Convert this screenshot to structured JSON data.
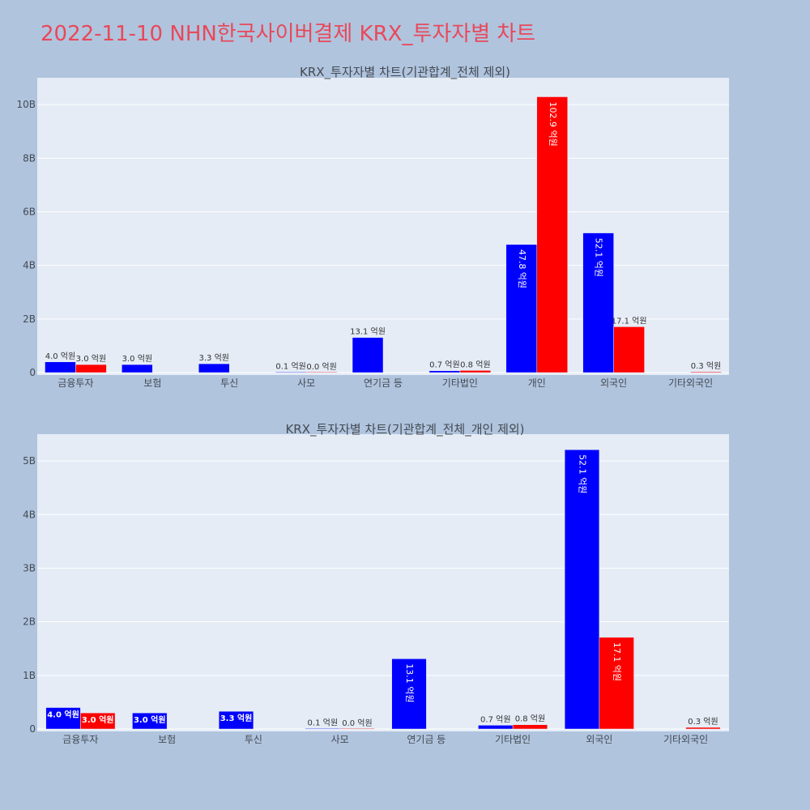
{
  "page": {
    "title": "2022-11-10 NHN한국사이버결제 KRX_투자자별 차트"
  },
  "colors": {
    "buy": "#0000ff",
    "sell": "#ff0000",
    "title": "#e8495a"
  },
  "chart_data": [
    {
      "type": "bar",
      "title": "KRX_투자자별 차트(기관합계_전체 제외)",
      "categories": [
        "금융투자",
        "보험",
        "투신",
        "사모",
        "연기금 등",
        "기타법인",
        "개인",
        "외국인",
        "기타외국인"
      ],
      "series": [
        {
          "values": [
            0.4,
            0.3,
            0.33,
            0.01,
            1.31,
            0.07,
            4.78,
            5.21,
            null
          ],
          "labels": [
            "4.0 억원",
            "3.0 억원",
            "3.3 억원",
            "0.1 억원",
            "13.1 억원",
            "0.7 억원",
            "47.8 억원",
            "52.1 억원",
            ""
          ]
        },
        {
          "values": [
            0.3,
            null,
            null,
            0.0,
            null,
            0.08,
            10.29,
            1.71,
            0.03
          ],
          "labels": [
            "3.0 억원",
            "",
            "",
            "0.0 억원",
            "",
            "0.8 억원",
            "102.9 억원",
            "17.1 억원",
            "0.3 억원"
          ]
        }
      ],
      "yunit": "B",
      "ylim": [
        0,
        11
      ],
      "yticks": [
        0,
        2,
        4,
        6,
        8,
        10
      ],
      "ytick_labels": [
        "0",
        "2B",
        "4B",
        "6B",
        "8B",
        "10B"
      ],
      "grid": true
    },
    {
      "type": "bar",
      "title": "KRX_투자자별 차트(기관합계_전체_개인 제외)",
      "categories": [
        "금융투자",
        "보험",
        "투신",
        "사모",
        "연기금 등",
        "기타법인",
        "외국인",
        "기타외국인"
      ],
      "series": [
        {
          "values": [
            0.4,
            0.3,
            0.33,
            0.01,
            1.31,
            0.07,
            5.21,
            null
          ],
          "labels": [
            "4.0 억원",
            "3.0 억원",
            "3.3 억원",
            "0.1 억원",
            "13.1 억원",
            "0.7 억원",
            "52.1 억원",
            ""
          ]
        },
        {
          "values": [
            0.3,
            null,
            null,
            0.0,
            null,
            0.08,
            1.71,
            0.03
          ],
          "labels": [
            "3.0 억원",
            "",
            "",
            "0.0 억원",
            "",
            "0.8 억원",
            "17.1 억원",
            "0.3 억원"
          ]
        }
      ],
      "yunit": "B",
      "ylim": [
        0,
        5.5
      ],
      "yticks": [
        0,
        1,
        2,
        3,
        4,
        5
      ],
      "ytick_labels": [
        "0",
        "1B",
        "2B",
        "3B",
        "4B",
        "5B"
      ],
      "grid": true
    }
  ]
}
